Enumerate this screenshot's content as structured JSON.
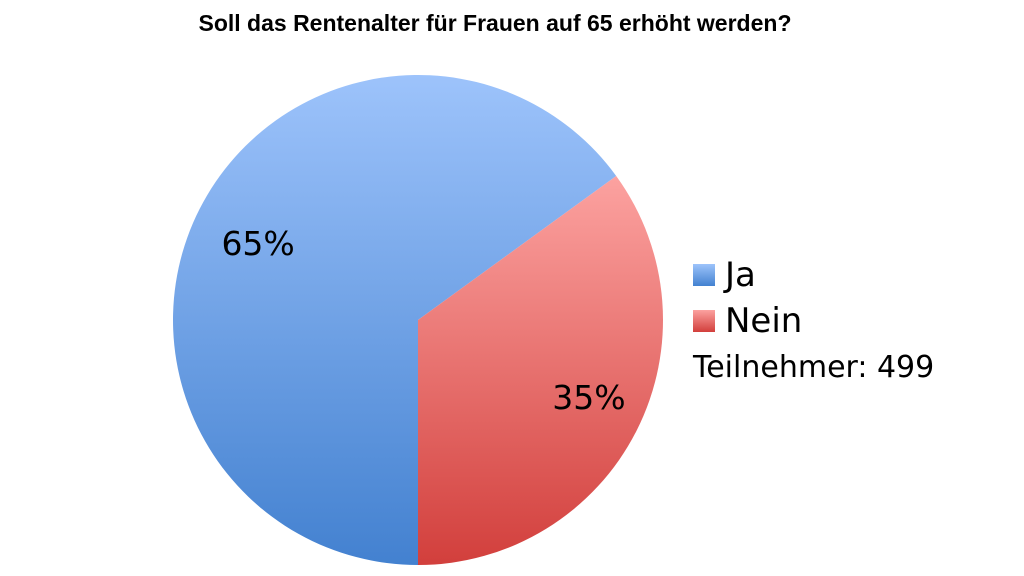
{
  "chart_data": {
    "type": "pie",
    "title": "Soll das Rentenalter für Frauen auf 65 erhöht werden?",
    "categories": [
      "Ja",
      "Nein"
    ],
    "values": [
      65,
      35
    ],
    "labels": [
      "65%",
      "35%"
    ],
    "colors": {
      "Ja": {
        "light": "#9dc3fb",
        "dark": "#4381d0"
      },
      "Nein": {
        "light": "#fca2a0",
        "dark": "#d23f3c"
      }
    },
    "legend_placement": "right",
    "participants_text": "Teilnehmer: 499"
  }
}
